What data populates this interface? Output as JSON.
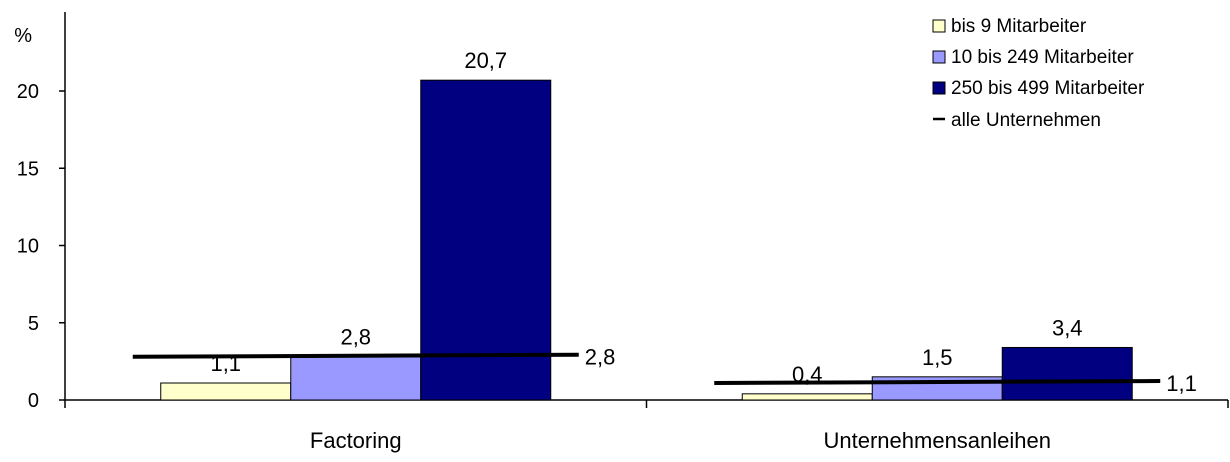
{
  "chart_data": {
    "type": "bar",
    "ylabel": "%",
    "ylim": [
      0,
      25
    ],
    "yticks": [
      0,
      5,
      10,
      15,
      20
    ],
    "grid": false,
    "legend_position": "top-right",
    "categories": [
      "Factoring",
      "Unternehmensanleihen"
    ],
    "series": [
      {
        "name": "bis 9 Mitarbeiter",
        "values": [
          1.1,
          0.4
        ],
        "labels": [
          "1,1",
          "0,4"
        ],
        "color": "#ffffcc"
      },
      {
        "name": "10 bis 249 Mitarbeiter",
        "values": [
          2.8,
          1.5
        ],
        "labels": [
          "2,8",
          "1,5"
        ],
        "color": "#9999ff"
      },
      {
        "name": "250 bis 499 Mitarbeiter",
        "values": [
          20.7,
          3.4
        ],
        "labels": [
          "20,7",
          "3,4"
        ],
        "color": "#000080"
      }
    ],
    "reference_line": {
      "name": "alle Unternehmen",
      "values": [
        2.8,
        1.1
      ],
      "labels": [
        "2,8",
        "1,1"
      ],
      "color": "#000000"
    }
  }
}
